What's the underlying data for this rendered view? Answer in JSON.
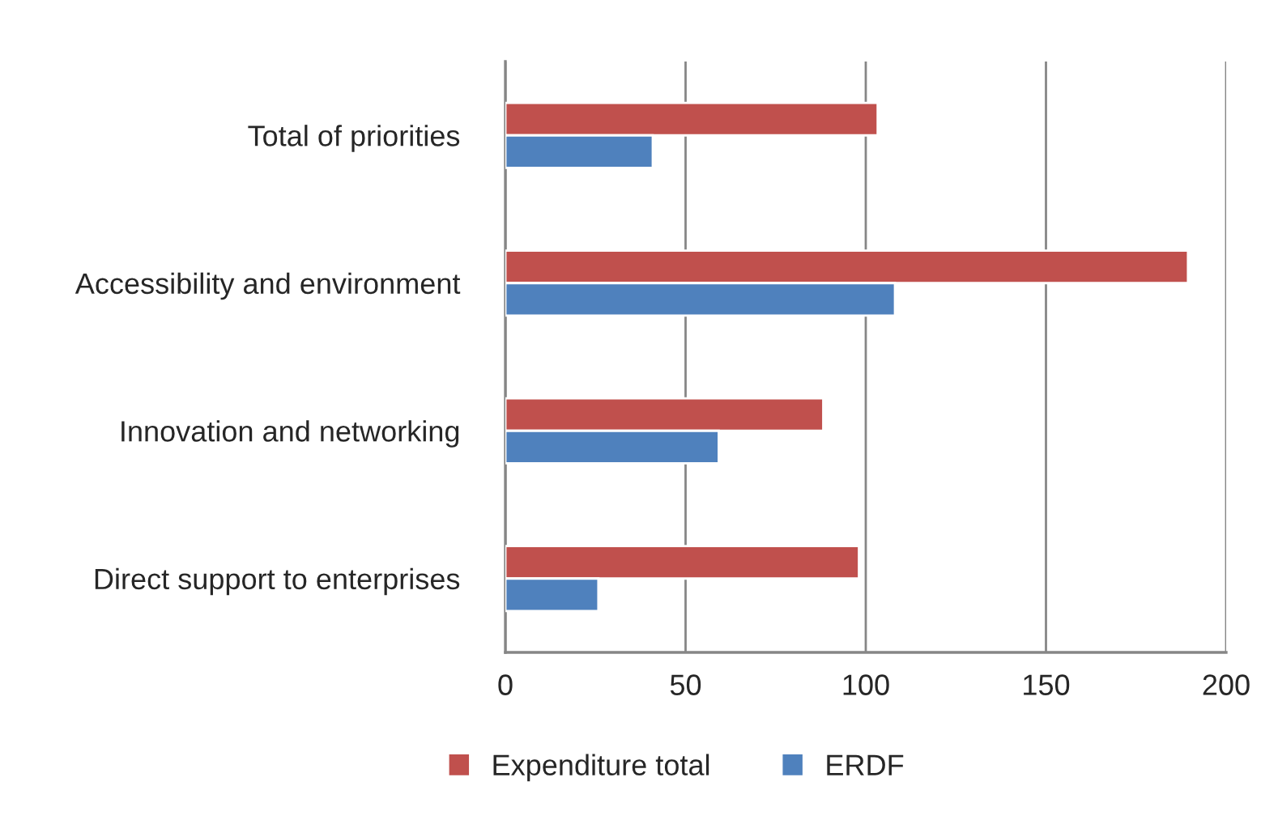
{
  "chart_data": {
    "type": "bar",
    "orientation": "horizontal",
    "categories": [
      "Total of priorities",
      "Accessibility and environment",
      "Innovation and networking",
      "Direct support to enterprises"
    ],
    "series": [
      {
        "name": "Expenditure total",
        "color": "#c0504d",
        "values": [
          103.3,
          189.4,
          88.2,
          98.1
        ]
      },
      {
        "name": "ERDF",
        "color": "#4f81bd",
        "values": [
          40.9,
          108.1,
          59.2,
          25.8
        ]
      }
    ],
    "xlim": [
      0,
      200
    ],
    "xticks": [
      0,
      50,
      100,
      150,
      200
    ],
    "grid": "x",
    "legend": "bottom"
  }
}
